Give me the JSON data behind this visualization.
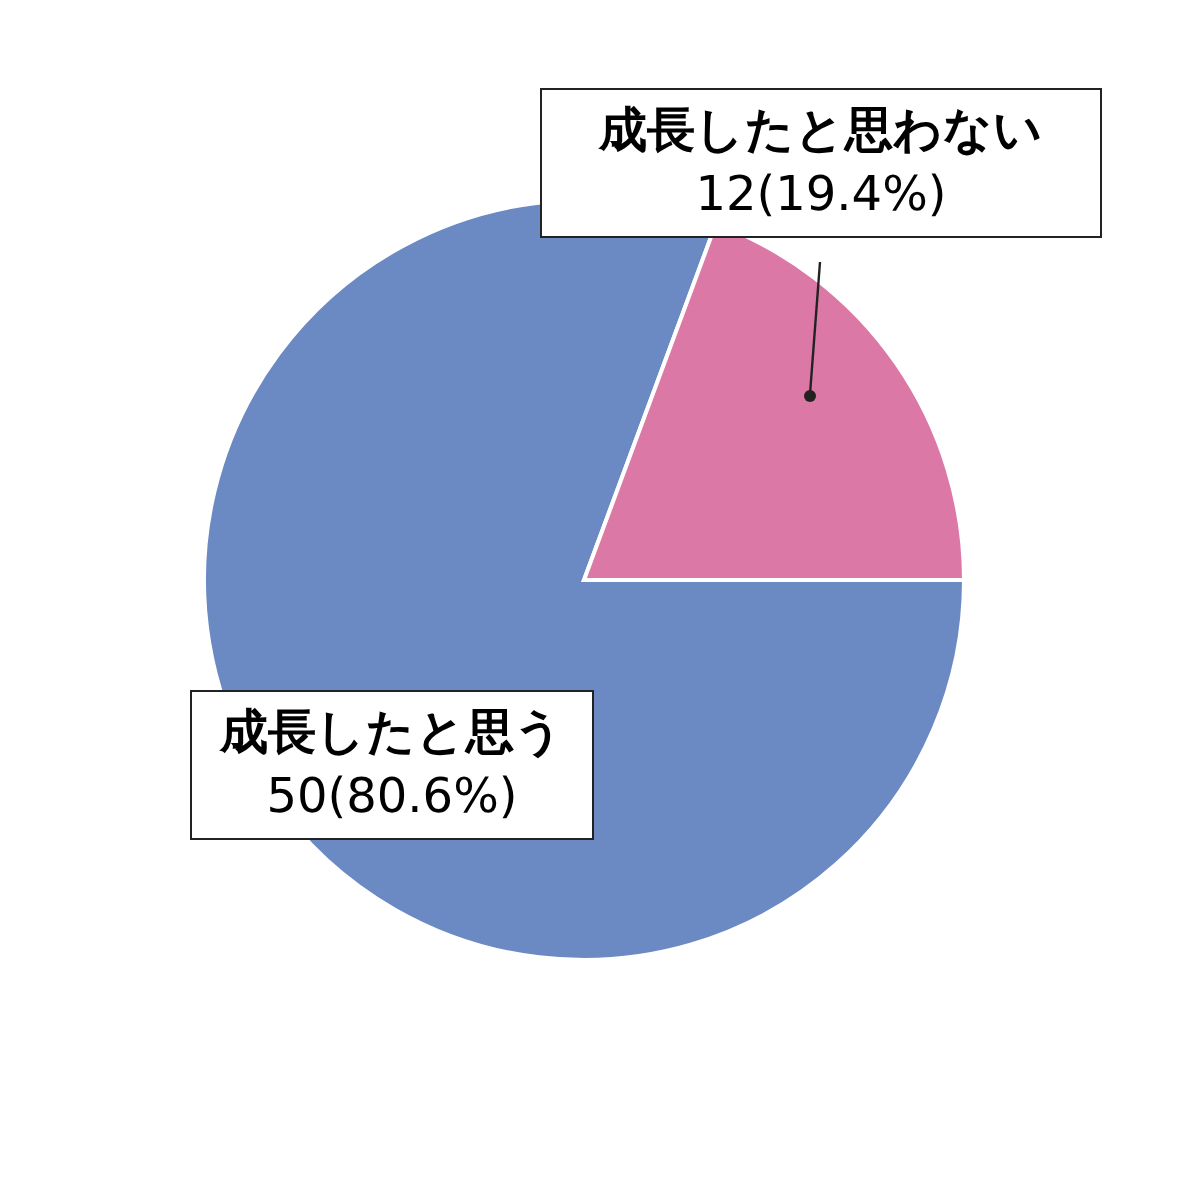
{
  "chart_data": {
    "type": "pie",
    "categories": [
      "成長したと思う",
      "成長したと思わない"
    ],
    "values": [
      50,
      12
    ],
    "colors": [
      "#6b8ac4",
      "#dc78a6"
    ],
    "value_labels": [
      "50(80.6%)",
      "12(19.4%)"
    ]
  }
}
